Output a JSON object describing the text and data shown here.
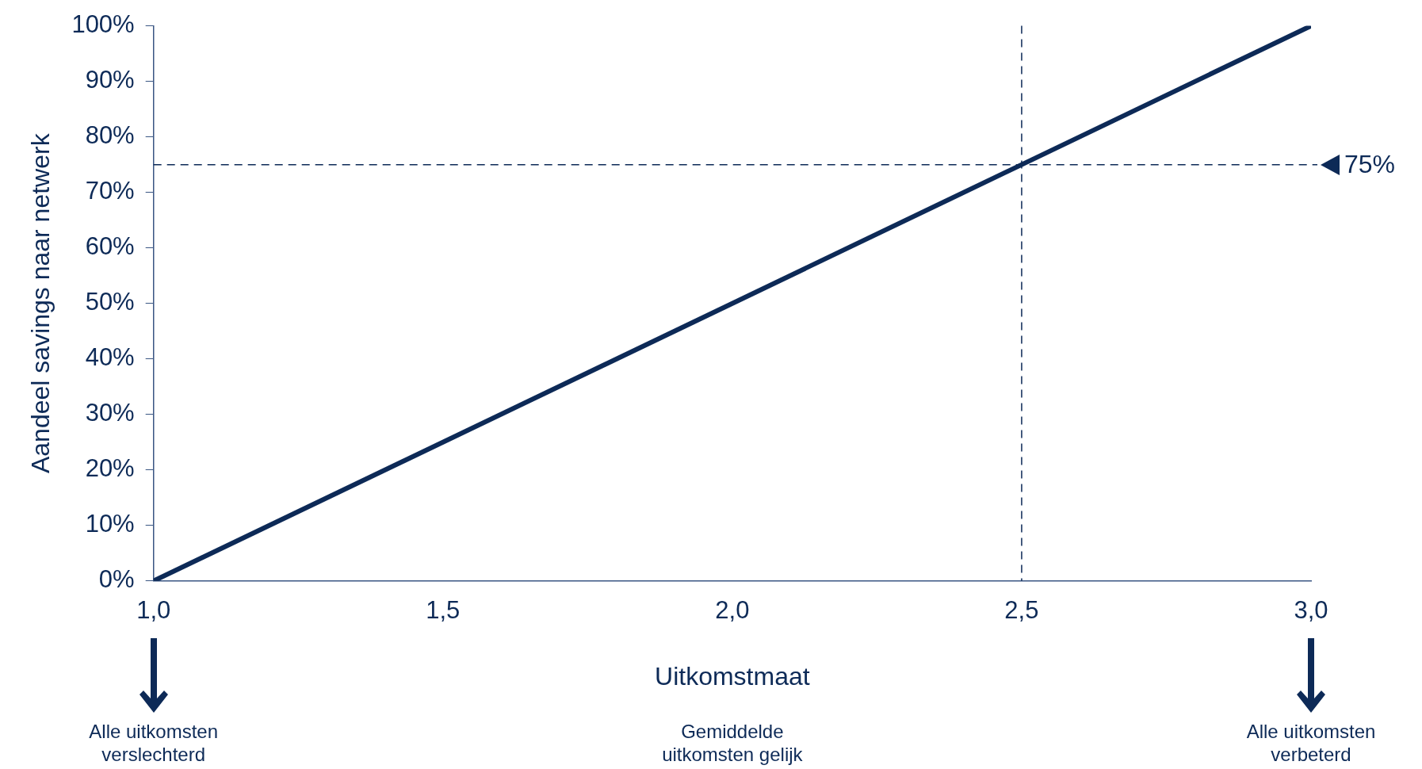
{
  "chart_data": {
    "type": "line",
    "xlabel": "Uitkomstmaat",
    "ylabel": "Aandeel savings naar netwerk",
    "x": [
      1,
      3
    ],
    "series": [
      {
        "color": "#0d2a57",
        "values": [
          0,
          100
        ]
      }
    ],
    "xlim": [
      1,
      3
    ],
    "xticks": [
      {
        "value": 1,
        "label": "1,0"
      },
      {
        "value": 1.5,
        "label": "1,5"
      },
      {
        "value": 2,
        "label": "2,0"
      },
      {
        "value": 2.5,
        "label": "2,5"
      },
      {
        "value": 3,
        "label": "3,0"
      }
    ],
    "ylim": [
      0,
      100
    ],
    "yticks": [
      {
        "value": 0,
        "label": "0%"
      },
      {
        "value": 10,
        "label": "10%"
      },
      {
        "value": 20,
        "label": "20%"
      },
      {
        "value": 30,
        "label": "30%"
      },
      {
        "value": 40,
        "label": "40%"
      },
      {
        "value": 50,
        "label": "50%"
      },
      {
        "value": 60,
        "label": "60%"
      },
      {
        "value": 70,
        "label": "70%"
      },
      {
        "value": 80,
        "label": "80%"
      },
      {
        "value": 90,
        "label": "90%"
      },
      {
        "value": 100,
        "label": "100%"
      }
    ],
    "ref_lines": [
      {
        "axis": "x",
        "value": 2.5,
        "line_style": "dashed",
        "color": "#0d2a57"
      },
      {
        "axis": "y",
        "value": 75,
        "label": "75%",
        "line_style": "dashed",
        "color": "#0d2a57"
      }
    ],
    "annotations": [
      "Alle uitkomsten verslechterd",
      "Gemiddelde uitkomsten gelijk",
      "Alle uitkomsten verbeterd"
    ],
    "grid": false,
    "legend": false,
    "marker": "none",
    "line_style": "solid"
  }
}
